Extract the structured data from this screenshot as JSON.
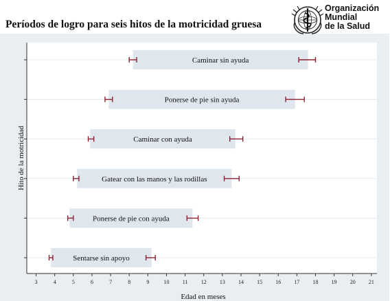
{
  "title": "Períodos de logro para seis hitos de la motricidad gruesa",
  "logo": {
    "lines": [
      "Organización",
      "Mundial",
      "de la Salud"
    ],
    "icon": "who-emblem-icon"
  },
  "chart_data": {
    "type": "bar",
    "orientation": "horizontal-range",
    "xlabel": "Edad en meses",
    "ylabel": "Hito de la motricidad",
    "xlim": [
      2.5,
      21.3
    ],
    "xticks": [
      3,
      4,
      5,
      6,
      7,
      8,
      9,
      10,
      11,
      12,
      13,
      14,
      15,
      16,
      17,
      18,
      19,
      20,
      21
    ],
    "grid": "horizontal",
    "bar_color": "#dfe6ee",
    "errorbar_color": "#8b2232",
    "milestones": [
      {
        "label": "Caminar sin ayuda",
        "start": 8.2,
        "end": 17.6,
        "start_ci": [
          8.0,
          8.4
        ],
        "end_ci": [
          17.1,
          18.0
        ]
      },
      {
        "label": "Ponerse de pie sin ayuda",
        "start": 6.9,
        "end": 16.9,
        "start_ci": [
          6.7,
          7.1
        ],
        "end_ci": [
          16.4,
          17.4
        ]
      },
      {
        "label": "Caminar con ayuda",
        "start": 5.9,
        "end": 13.7,
        "start_ci": [
          5.8,
          6.1
        ],
        "end_ci": [
          13.4,
          14.1
        ]
      },
      {
        "label": "Gatear con las manos y las rodillas",
        "start": 5.2,
        "end": 13.5,
        "start_ci": [
          5.0,
          5.3
        ],
        "end_ci": [
          13.1,
          13.9
        ]
      },
      {
        "label": "Ponerse de pie con ayuda",
        "start": 4.8,
        "end": 11.4,
        "start_ci": [
          4.7,
          5.0
        ],
        "end_ci": [
          11.1,
          11.7
        ]
      },
      {
        "label": "Sentarse sin apoyo",
        "start": 3.8,
        "end": 9.2,
        "start_ci": [
          3.7,
          3.9
        ],
        "end_ci": [
          8.9,
          9.4
        ]
      }
    ]
  }
}
